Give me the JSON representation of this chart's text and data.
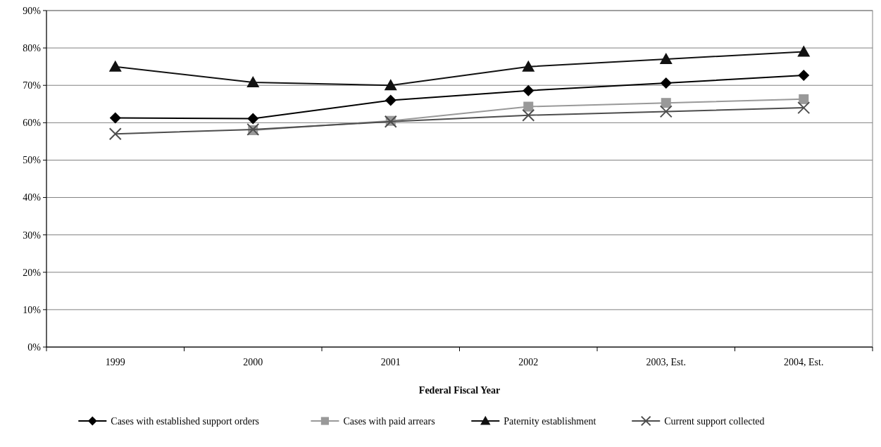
{
  "chart_data": {
    "type": "line",
    "xlabel": "Federal Fiscal Year",
    "categories": [
      "1999",
      "2000",
      "2001",
      "2002",
      "2003, Est.",
      "2004, Est."
    ],
    "ylim": [
      0,
      0.9
    ],
    "yticks": [
      {
        "value": 0,
        "label": "0%"
      },
      {
        "value": 0.1,
        "label": "10%"
      },
      {
        "value": 0.2,
        "label": "20%"
      },
      {
        "value": 0.3,
        "label": "30%"
      },
      {
        "value": 0.4,
        "label": "40%"
      },
      {
        "value": 0.5,
        "label": "50%"
      },
      {
        "value": 0.6,
        "label": "60%"
      },
      {
        "value": 0.7,
        "label": "70%"
      },
      {
        "value": 0.8,
        "label": "80%"
      },
      {
        "value": 0.9,
        "label": "90%"
      }
    ],
    "grid": "y",
    "legend": "bottom",
    "series": [
      {
        "name": "Cases with established support orders",
        "color": "#000000",
        "marker": "diamond",
        "values": [
          0.613,
          0.611,
          0.66,
          0.686,
          0.706,
          0.727
        ]
      },
      {
        "name": "Cases with paid arrears",
        "color": "#999999",
        "marker": "square",
        "values": [
          null,
          0.58,
          0.605,
          0.643,
          0.653,
          0.663
        ]
      },
      {
        "name": "Paternity establishment",
        "color": "#111111",
        "marker": "triangle",
        "values": [
          0.75,
          0.708,
          0.7,
          0.75,
          0.77,
          0.79
        ]
      },
      {
        "name": "Current support collected",
        "color": "#4d4d4d",
        "marker": "cross",
        "values": [
          0.57,
          0.582,
          0.603,
          0.62,
          0.63,
          0.64
        ]
      }
    ]
  }
}
